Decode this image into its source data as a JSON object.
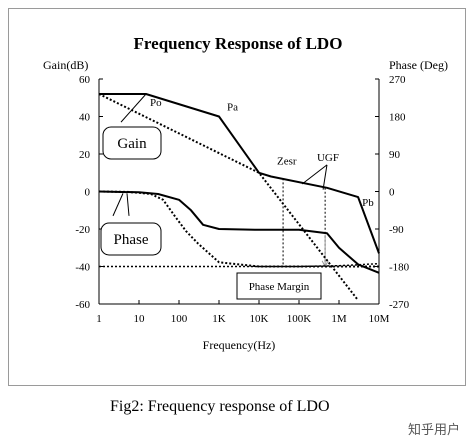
{
  "chart_data": {
    "type": "line",
    "title": "Frequency Response of LDO",
    "xlabel": "Frequency(Hz)",
    "ylabel_left": "Gain(dB)",
    "ylabel_right": "Phase (Deg)",
    "xscale": "log",
    "xlim": [
      1,
      10000000
    ],
    "ylim": [
      -60,
      60
    ],
    "ylim_right": [
      -270,
      270
    ],
    "x_ticks": [
      1,
      10,
      100,
      1000,
      10000,
      100000,
      1000000,
      10000000
    ],
    "x_tick_labels": [
      "1",
      "10",
      "100",
      "1K",
      "10K",
      "100K",
      "1M",
      "10M"
    ],
    "y_ticks": [
      60,
      40,
      20,
      0,
      -20,
      -40,
      -60
    ],
    "y_tick_labels": [
      "60",
      "40",
      "20",
      "0",
      "-20",
      "-40",
      "-60"
    ],
    "y2_ticks": [
      270,
      180,
      90,
      0,
      -90,
      -180,
      -270
    ],
    "y2_tick_labels": [
      "270",
      "180",
      "90",
      "0",
      "-90",
      "-180",
      "-270"
    ],
    "grid": false,
    "series": [
      {
        "x": [
          1,
          15,
          1000,
          10000,
          20000,
          500000,
          3000000,
          10000000
        ],
        "values": [
          52,
          52,
          40,
          10,
          8,
          2,
          -3,
          -33
        ]
      },
      {
        "x": [
          1,
          10000,
          3000000
        ],
        "values": [
          52,
          10,
          -58
        ]
      },
      {
        "x": [
          1,
          10,
          30,
          100,
          200,
          400,
          1000,
          10000,
          100000,
          500000,
          1000000,
          3000000,
          10000000
        ],
        "values": [
          0,
          -2,
          -6,
          -20,
          -45,
          -80,
          -90,
          -92,
          -92,
          -100,
          -135,
          -175,
          -195
        ]
      },
      {
        "x": [
          1,
          5,
          10,
          20,
          40,
          80,
          150,
          300,
          1000,
          10000,
          100000,
          400000,
          1000000,
          10000000
        ],
        "values": [
          0,
          -1,
          -3,
          -6,
          -20,
          -60,
          -95,
          -125,
          -170,
          -180,
          -180,
          -180,
          -180,
          -180
        ]
      },
      {
        "x": [
          1,
          100000,
          1000000,
          3000000,
          10000000
        ],
        "values": [
          -180,
          -180,
          -178,
          -176,
          -173
        ]
      }
    ],
    "annotations": {
      "po": "Po",
      "pa": "Pa",
      "pb": "Pb",
      "zesr": "Zesr",
      "ugf": "UGF",
      "gain_box": "Gain",
      "phase_box": "Phase",
      "phase_margin_box": "Phase Margin"
    },
    "caption": "Fig2: Frequency response of LDO",
    "watermark": "知乎用户"
  }
}
